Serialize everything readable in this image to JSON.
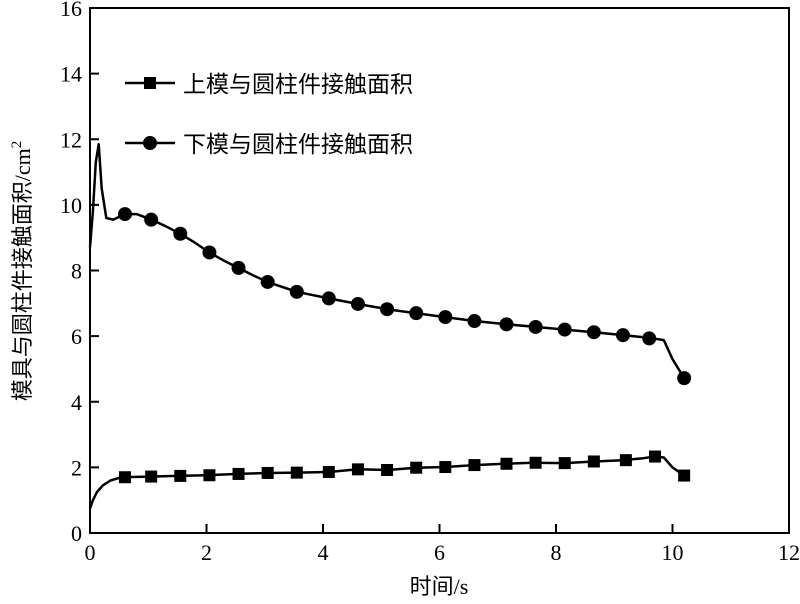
{
  "chart_data": {
    "type": "line",
    "xlabel": "时间/s",
    "ylabel": "模具与圆柱件接触面积/cm",
    "ylabel_superscript": "2",
    "xlim": [
      0,
      12
    ],
    "ylim": [
      0,
      16
    ],
    "xticks": [
      "0",
      "2",
      "4",
      "6",
      "8",
      "10",
      "12"
    ],
    "yticks": [
      "0",
      "2",
      "4",
      "6",
      "8",
      "10",
      "12",
      "14",
      "16"
    ],
    "grid": false,
    "legend_position": "top-left",
    "series": [
      {
        "name": "上模与圆柱件接触面积",
        "marker": "square",
        "color": "#000000",
        "curve": [
          [
            0.0,
            0.75
          ],
          [
            0.05,
            1.0
          ],
          [
            0.12,
            1.25
          ],
          [
            0.22,
            1.45
          ],
          [
            0.35,
            1.6
          ],
          [
            0.5,
            1.68
          ],
          [
            0.6,
            1.7
          ],
          [
            1.0,
            1.72
          ],
          [
            1.5,
            1.74
          ],
          [
            2.0,
            1.76
          ],
          [
            2.55,
            1.8
          ],
          [
            3.05,
            1.83
          ],
          [
            3.55,
            1.84
          ],
          [
            4.1,
            1.86
          ],
          [
            4.6,
            1.94
          ],
          [
            5.1,
            1.92
          ],
          [
            5.6,
            1.99
          ],
          [
            6.1,
            2.01
          ],
          [
            6.6,
            2.07
          ],
          [
            7.1,
            2.11
          ],
          [
            7.6,
            2.14
          ],
          [
            8.15,
            2.13
          ],
          [
            8.65,
            2.18
          ],
          [
            9.15,
            2.22
          ],
          [
            9.5,
            2.28
          ],
          [
            9.7,
            2.33
          ],
          [
            9.85,
            2.3
          ],
          [
            10.0,
            2.0
          ],
          [
            10.2,
            1.75
          ]
        ],
        "markers": [
          [
            0.6,
            1.7
          ],
          [
            1.05,
            1.72
          ],
          [
            1.55,
            1.74
          ],
          [
            2.05,
            1.76
          ],
          [
            2.55,
            1.8
          ],
          [
            3.05,
            1.83
          ],
          [
            3.55,
            1.84
          ],
          [
            4.1,
            1.86
          ],
          [
            4.6,
            1.94
          ],
          [
            5.1,
            1.92
          ],
          [
            5.6,
            1.99
          ],
          [
            6.1,
            2.01
          ],
          [
            6.6,
            2.07
          ],
          [
            7.15,
            2.11
          ],
          [
            7.65,
            2.14
          ],
          [
            8.15,
            2.13
          ],
          [
            8.65,
            2.18
          ],
          [
            9.2,
            2.22
          ],
          [
            9.7,
            2.33
          ],
          [
            10.2,
            1.75
          ]
        ]
      },
      {
        "name": "下模与圆柱件接触面积",
        "marker": "circle",
        "color": "#000000",
        "curve": [
          [
            0.0,
            8.7
          ],
          [
            0.05,
            9.8
          ],
          [
            0.1,
            11.3
          ],
          [
            0.15,
            11.85
          ],
          [
            0.2,
            10.5
          ],
          [
            0.28,
            9.6
          ],
          [
            0.4,
            9.55
          ],
          [
            0.6,
            9.72
          ],
          [
            0.8,
            9.72
          ],
          [
            1.05,
            9.55
          ],
          [
            1.3,
            9.35
          ],
          [
            1.55,
            9.12
          ],
          [
            1.8,
            8.85
          ],
          [
            2.05,
            8.55
          ],
          [
            2.3,
            8.3
          ],
          [
            2.55,
            8.08
          ],
          [
            2.8,
            7.85
          ],
          [
            3.05,
            7.65
          ],
          [
            3.3,
            7.5
          ],
          [
            3.55,
            7.35
          ],
          [
            4.1,
            7.15
          ],
          [
            4.6,
            6.98
          ],
          [
            5.1,
            6.82
          ],
          [
            5.6,
            6.7
          ],
          [
            6.1,
            6.58
          ],
          [
            6.6,
            6.46
          ],
          [
            7.15,
            6.36
          ],
          [
            7.65,
            6.28
          ],
          [
            8.15,
            6.2
          ],
          [
            8.65,
            6.12
          ],
          [
            9.15,
            6.03
          ],
          [
            9.6,
            5.95
          ],
          [
            9.85,
            5.88
          ],
          [
            10.0,
            5.3
          ],
          [
            10.2,
            4.72
          ]
        ],
        "markers": [
          [
            0.6,
            9.72
          ],
          [
            1.05,
            9.55
          ],
          [
            1.55,
            9.12
          ],
          [
            2.05,
            8.55
          ],
          [
            2.55,
            8.08
          ],
          [
            3.05,
            7.65
          ],
          [
            3.55,
            7.35
          ],
          [
            4.1,
            7.15
          ],
          [
            4.6,
            6.98
          ],
          [
            5.1,
            6.82
          ],
          [
            5.6,
            6.7
          ],
          [
            6.1,
            6.58
          ],
          [
            6.6,
            6.46
          ],
          [
            7.15,
            6.36
          ],
          [
            7.65,
            6.28
          ],
          [
            8.15,
            6.2
          ],
          [
            8.65,
            6.12
          ],
          [
            9.15,
            6.03
          ],
          [
            9.6,
            5.93
          ],
          [
            10.2,
            4.72
          ]
        ]
      }
    ]
  }
}
